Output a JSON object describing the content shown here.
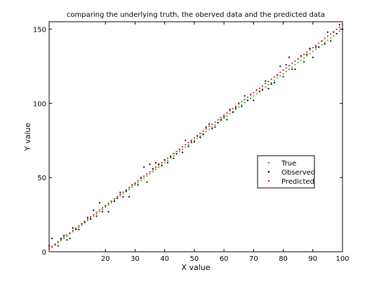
{
  "chart_data": {
    "type": "scatter",
    "title": "comparing the underlying truth, the oberved data and the predicted data",
    "xlabel": "X value",
    "ylabel": "Y value",
    "xlim": [
      1,
      100
    ],
    "ylim": [
      0,
      155
    ],
    "xticks": [
      20,
      30,
      40,
      50,
      60,
      70,
      80,
      90,
      100
    ],
    "xtick_labels": [
      "20",
      "30",
      "40",
      "50",
      "60",
      "70",
      "80",
      "90",
      "100"
    ],
    "yticks": [
      0,
      50,
      100,
      150
    ],
    "ytick_labels": [
      "0",
      "50",
      "100",
      "150"
    ],
    "grid": false,
    "legend_position": "right-middle",
    "series": [
      {
        "name": "True",
        "color": "#2db52d",
        "marker": "dot",
        "x": [
          1,
          2,
          3,
          4,
          5,
          6,
          7,
          8,
          9,
          10,
          11,
          12,
          13,
          14,
          15,
          16,
          17,
          18,
          19,
          20,
          21,
          22,
          23,
          24,
          25,
          26,
          27,
          28,
          29,
          30,
          31,
          32,
          33,
          34,
          35,
          36,
          37,
          38,
          39,
          40,
          41,
          42,
          43,
          44,
          45,
          46,
          47,
          48,
          49,
          50,
          51,
          52,
          53,
          54,
          55,
          56,
          57,
          58,
          59,
          60,
          61,
          62,
          63,
          64,
          65,
          66,
          67,
          68,
          69,
          70,
          71,
          72,
          73,
          74,
          75,
          76,
          77,
          78,
          79,
          80,
          81,
          82,
          83,
          84,
          85,
          86,
          87,
          88,
          89,
          90,
          91,
          92,
          93,
          94,
          95,
          96,
          97,
          98,
          99,
          100
        ],
        "y": [
          1.5,
          3,
          4.5,
          6,
          7.5,
          9,
          10.5,
          12,
          13.5,
          15,
          16.5,
          18,
          19.5,
          21,
          22.5,
          24,
          25.5,
          27,
          28.5,
          30,
          31.5,
          33,
          34.5,
          36,
          37.5,
          39,
          40.5,
          42,
          43.5,
          45,
          46.5,
          48,
          49.5,
          51,
          52.5,
          54,
          55.5,
          57,
          58.5,
          60,
          61.5,
          63,
          64.5,
          66,
          67.5,
          69,
          70.5,
          72,
          73.5,
          75,
          76.5,
          78,
          79.5,
          81,
          82.5,
          84,
          85.5,
          87,
          88.5,
          90,
          91.5,
          93,
          94.5,
          96,
          97.5,
          99,
          100.5,
          102,
          103.5,
          105,
          106.5,
          108,
          109.5,
          111,
          112.5,
          114,
          115.5,
          117,
          118.5,
          120,
          121.5,
          123,
          124.5,
          126,
          127.5,
          129,
          130.5,
          132,
          133.5,
          135,
          136.5,
          138,
          139.5,
          141,
          142.5,
          144,
          145.5,
          147,
          148.5,
          150
        ]
      },
      {
        "name": "Observed",
        "color": "#000000",
        "marker": "dot",
        "x": [
          1,
          2,
          3,
          4,
          5,
          6,
          7,
          8,
          9,
          10,
          11,
          12,
          13,
          14,
          15,
          16,
          17,
          18,
          19,
          20,
          21,
          22,
          23,
          24,
          25,
          26,
          27,
          28,
          29,
          30,
          31,
          32,
          33,
          34,
          35,
          36,
          37,
          38,
          39,
          40,
          41,
          42,
          43,
          44,
          45,
          46,
          47,
          48,
          49,
          50,
          51,
          52,
          53,
          54,
          55,
          56,
          57,
          58,
          59,
          60,
          61,
          62,
          63,
          64,
          65,
          66,
          67,
          68,
          69,
          70,
          71,
          72,
          73,
          74,
          75,
          76,
          77,
          78,
          79,
          80,
          81,
          82,
          83,
          84,
          85,
          86,
          87,
          88,
          89,
          90,
          91,
          92,
          93,
          94,
          95,
          96,
          97,
          98,
          99,
          100
        ],
        "y": [
          4,
          9,
          5,
          4,
          9,
          11,
          8,
          9,
          16,
          15,
          15,
          19,
          20,
          23,
          22,
          28,
          24,
          33,
          27,
          31,
          27,
          34,
          34,
          36,
          40,
          37,
          41,
          37,
          45,
          46,
          45,
          50,
          57,
          47,
          59,
          56,
          60,
          59,
          58,
          62,
          60,
          64,
          63,
          66,
          69,
          67,
          75,
          71,
          74,
          74,
          78,
          77,
          79,
          84,
          86,
          83,
          84,
          87,
          89,
          91,
          89,
          96,
          94,
          97,
          100,
          98,
          105,
          102,
          106,
          102,
          109,
          108,
          109,
          115,
          110,
          113,
          114,
          119,
          125,
          118,
          126,
          131,
          123,
          123,
          130,
          132,
          128,
          133,
          137,
          131,
          138,
          138,
          142,
          140,
          148,
          142,
          148,
          147,
          153,
          150
        ]
      },
      {
        "name": "Predicted",
        "color": "#d62020",
        "marker": "dot",
        "x": [
          1,
          2,
          3,
          4,
          5,
          6,
          7,
          8,
          9,
          10,
          11,
          12,
          13,
          14,
          15,
          16,
          17,
          18,
          19,
          20,
          21,
          22,
          23,
          24,
          25,
          26,
          27,
          28,
          29,
          30,
          31,
          32,
          33,
          34,
          35,
          36,
          37,
          38,
          39,
          40,
          41,
          42,
          43,
          44,
          45,
          46,
          47,
          48,
          49,
          50,
          51,
          52,
          53,
          54,
          55,
          56,
          57,
          58,
          59,
          60,
          61,
          62,
          63,
          64,
          65,
          66,
          67,
          68,
          69,
          70,
          71,
          72,
          73,
          74,
          75,
          76,
          77,
          78,
          79,
          80,
          81,
          82,
          83,
          84,
          85,
          86,
          87,
          88,
          89,
          90,
          91,
          92,
          93,
          94,
          95,
          96,
          97,
          98,
          99,
          100
        ],
        "y": [
          2.2,
          3.7,
          5.2,
          6.8,
          8.3,
          9.8,
          11.3,
          12.8,
          14.4,
          15.9,
          17.4,
          18.9,
          20.5,
          22,
          23.5,
          25,
          26.5,
          28.1,
          29.6,
          31.1,
          32.6,
          34.1,
          35.7,
          37.2,
          38.7,
          40.2,
          41.8,
          43.3,
          44.8,
          46.3,
          47.8,
          49.4,
          50.9,
          52.4,
          53.9,
          55.4,
          57,
          58.5,
          60,
          61.5,
          63.1,
          64.6,
          66.1,
          67.6,
          69.1,
          70.7,
          72.2,
          73.7,
          75.2,
          76.7,
          78.3,
          79.8,
          81.3,
          82.8,
          84.4,
          85.9,
          87.4,
          88.9,
          90.4,
          92,
          93.5,
          95,
          96.5,
          98,
          99.6,
          101.1,
          102.6,
          104.1,
          105.7,
          107.2,
          108.7,
          110.2,
          111.7,
          113.3,
          114.8,
          116.3,
          117.8,
          119.3,
          120.9,
          122.4,
          123.9,
          125.4,
          127,
          128.5,
          130,
          131.5,
          133,
          134.6,
          136.1,
          137.6,
          139.1,
          140.6,
          142.2,
          143.7,
          145.2,
          146.7,
          148.3,
          149.8,
          151.3,
          152.8
        ]
      }
    ]
  }
}
